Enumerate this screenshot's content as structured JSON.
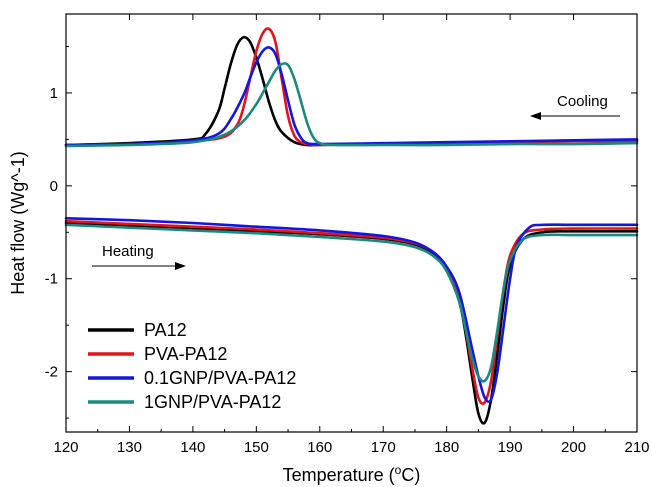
{
  "chart_data": {
    "type": "line",
    "xlabel": "Temperature (",
    "xlabel_unit_sup": "o",
    "xlabel_unit_after": "C)",
    "ylabel": "Heat flow (Wg^-1)",
    "xlim": [
      120,
      210
    ],
    "ylim": [
      -2.65,
      1.85
    ],
    "x_ticks": [
      120,
      130,
      140,
      150,
      160,
      170,
      180,
      190,
      200,
      210
    ],
    "x_tick_labels": [
      "120",
      "130",
      "140",
      "150",
      "160",
      "170",
      "180",
      "190",
      "200",
      "210"
    ],
    "y_ticks": [
      -2,
      -1,
      0,
      1
    ],
    "y_tick_labels": [
      "-2",
      "-1",
      "0",
      "1"
    ],
    "grid": false,
    "legend_position": "bottom-left",
    "annotations": [
      {
        "text": "Cooling",
        "arrow": "left"
      },
      {
        "text": "Heating",
        "arrow": "right"
      }
    ],
    "series": [
      {
        "name": "PA12",
        "color": "#000000",
        "cooling": {
          "x": [
            120,
            130,
            140,
            142,
            144,
            145,
            146,
            147,
            148,
            149,
            150,
            151,
            152,
            153,
            154,
            156,
            158,
            160,
            170,
            180,
            190,
            200,
            210
          ],
          "y": [
            0.44,
            0.46,
            0.5,
            0.56,
            0.8,
            1.05,
            1.32,
            1.52,
            1.6,
            1.55,
            1.38,
            1.15,
            0.9,
            0.7,
            0.58,
            0.47,
            0.44,
            0.44,
            0.45,
            0.46,
            0.47,
            0.48,
            0.49
          ]
        },
        "heating": {
          "x": [
            120,
            130,
            140,
            150,
            160,
            170,
            175,
            178,
            180,
            182,
            183,
            184,
            185,
            186,
            187,
            188,
            189,
            190,
            192,
            195,
            200,
            210
          ],
          "y": [
            -0.4,
            -0.43,
            -0.46,
            -0.49,
            -0.52,
            -0.57,
            -0.63,
            -0.73,
            -0.9,
            -1.25,
            -1.6,
            -2.05,
            -2.45,
            -2.55,
            -2.3,
            -1.8,
            -1.25,
            -0.85,
            -0.58,
            -0.5,
            -0.49,
            -0.49
          ]
        }
      },
      {
        "name": "PVA-PA12",
        "color": "#e8121b",
        "cooling": {
          "x": [
            120,
            130,
            140,
            145,
            147,
            148,
            149,
            150,
            151,
            152,
            153,
            154,
            155,
            156,
            157,
            158,
            160,
            170,
            180,
            190,
            200,
            210
          ],
          "y": [
            0.44,
            0.45,
            0.48,
            0.53,
            0.66,
            0.85,
            1.15,
            1.45,
            1.64,
            1.69,
            1.55,
            1.15,
            0.75,
            0.54,
            0.47,
            0.45,
            0.44,
            0.45,
            0.46,
            0.47,
            0.48,
            0.48
          ]
        },
        "heating": {
          "x": [
            120,
            130,
            140,
            150,
            160,
            170,
            175,
            178,
            180,
            182,
            183,
            184,
            185,
            186,
            187,
            188,
            189,
            190,
            192,
            195,
            200,
            210
          ],
          "y": [
            -0.38,
            -0.41,
            -0.44,
            -0.47,
            -0.51,
            -0.56,
            -0.62,
            -0.72,
            -0.88,
            -1.2,
            -1.55,
            -1.95,
            -2.28,
            -2.33,
            -2.1,
            -1.6,
            -1.1,
            -0.75,
            -0.52,
            -0.47,
            -0.46,
            -0.46
          ]
        }
      },
      {
        "name": "0.1GNP/PVA-PA12",
        "color": "#1515e0",
        "cooling": {
          "x": [
            120,
            130,
            140,
            144,
            146,
            148,
            149,
            150,
            151,
            152,
            153,
            154,
            155,
            156,
            157,
            158,
            160,
            170,
            180,
            190,
            200,
            210
          ],
          "y": [
            0.44,
            0.45,
            0.49,
            0.56,
            0.72,
            0.98,
            1.16,
            1.33,
            1.45,
            1.49,
            1.42,
            1.2,
            0.92,
            0.66,
            0.52,
            0.46,
            0.45,
            0.46,
            0.47,
            0.48,
            0.49,
            0.5
          ]
        },
        "heating": {
          "x": [
            120,
            130,
            140,
            150,
            160,
            170,
            175,
            178,
            180,
            182,
            184,
            185,
            186,
            187,
            188,
            189,
            190,
            191,
            193,
            195,
            200,
            210
          ],
          "y": [
            -0.35,
            -0.37,
            -0.4,
            -0.44,
            -0.48,
            -0.54,
            -0.61,
            -0.72,
            -0.87,
            -1.15,
            -1.75,
            -2.05,
            -2.28,
            -2.3,
            -2.0,
            -1.5,
            -1.0,
            -0.65,
            -0.45,
            -0.42,
            -0.42,
            -0.42
          ]
        }
      },
      {
        "name": "1GNP/PVA-PA12",
        "color": "#1a8a80",
        "cooling": {
          "x": [
            120,
            130,
            140,
            145,
            148,
            150,
            151,
            152,
            153,
            154,
            155,
            156,
            157,
            158,
            159,
            160,
            162,
            170,
            180,
            190,
            200,
            210
          ],
          "y": [
            0.43,
            0.44,
            0.47,
            0.55,
            0.7,
            0.88,
            1.0,
            1.12,
            1.24,
            1.31,
            1.3,
            1.15,
            0.92,
            0.68,
            0.52,
            0.46,
            0.44,
            0.44,
            0.44,
            0.45,
            0.45,
            0.46
          ]
        },
        "heating": {
          "x": [
            120,
            130,
            140,
            150,
            160,
            170,
            175,
            178,
            180,
            182,
            183,
            184,
            185,
            186,
            187,
            188,
            189,
            190,
            192,
            195,
            200,
            210
          ],
          "y": [
            -0.42,
            -0.45,
            -0.48,
            -0.51,
            -0.55,
            -0.6,
            -0.66,
            -0.76,
            -0.92,
            -1.25,
            -1.55,
            -1.85,
            -2.05,
            -2.1,
            -1.95,
            -1.55,
            -1.1,
            -0.8,
            -0.58,
            -0.53,
            -0.53,
            -0.53
          ]
        }
      }
    ]
  }
}
